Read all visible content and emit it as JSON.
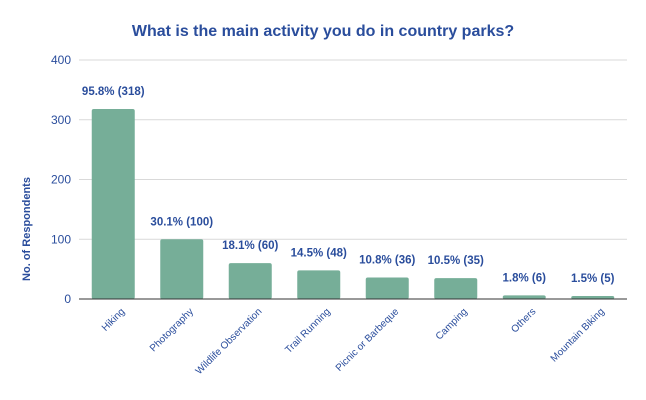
{
  "chart_data": {
    "type": "bar",
    "title": "What is the main activity you do in country parks?",
    "xlabel": "",
    "ylabel": "No. of Respondents",
    "ylim": [
      0,
      400
    ],
    "yticks": [
      0,
      100,
      200,
      300,
      400
    ],
    "grid": true,
    "legend": "none",
    "categories": [
      "Hiking",
      "Photography",
      "Wildlife Observation",
      "Trail Running",
      "Picnic or Barbeque",
      "Camping",
      "Others",
      "Mountain Biking"
    ],
    "values": [
      318,
      100,
      60,
      48,
      36,
      35,
      6,
      5
    ],
    "data_labels": [
      "95.8% (318)",
      "30.1% (100)",
      "18.1% (60)",
      "14.5% (48)",
      "10.8% (36)",
      "10.5% (35)",
      "1.8% (6)",
      "1.5% (5)"
    ]
  },
  "colors": {
    "bar": "#76ae98",
    "text": "#2a4d9c",
    "grid": "#d9d9d9",
    "axis": "#333333",
    "background": "#ffffff"
  }
}
